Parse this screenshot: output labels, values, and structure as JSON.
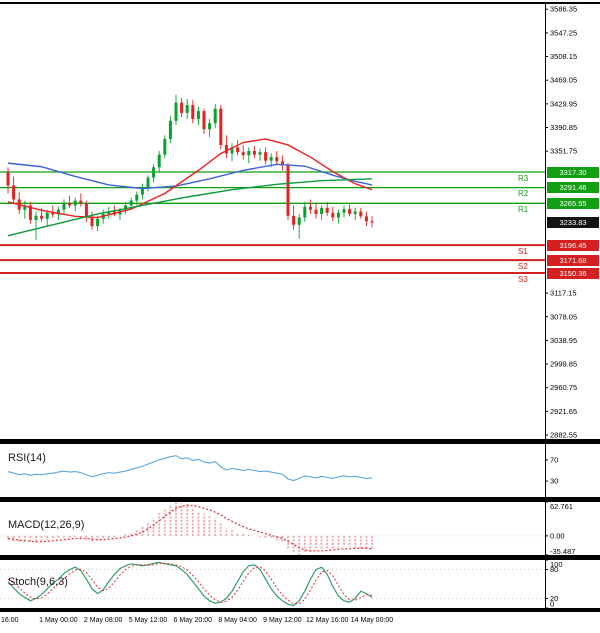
{
  "pivots": {
    "r3": {
      "label": "R3",
      "value": "3317.30"
    },
    "r2": {
      "label": "R2",
      "value": "3291.46"
    },
    "r1": {
      "label": "R1",
      "value": "3265.55"
    },
    "last": {
      "value": "3233.83"
    },
    "s1": {
      "label": "S1",
      "value": "3196.45"
    },
    "s2": {
      "label": "S2",
      "value": "3171.68"
    },
    "s3": {
      "label": "S3",
      "value": "3150.36"
    }
  },
  "panes": {
    "rsi": {
      "title": "RSI(14)"
    },
    "macd": {
      "title": "MACD(12,26,9)"
    },
    "stoch": {
      "title": "Stoch(9,6,3)"
    }
  },
  "colors": {
    "bull": "#0aa12e",
    "bear": "#e02424",
    "ma_blue": "#3a62d8",
    "ma_red": "#f02020",
    "ma_green": "#0a9a3c",
    "pivot_green": "#12a012",
    "pivot_red": "#d42020",
    "last_bg": "#141414",
    "rsi_line": "#5aa7e0",
    "macd_hist": "#f0a4a8",
    "macd_signal": "#e03030",
    "stoch_k": "#2f9e6e",
    "stoch_d": "#e03030",
    "axis_text": "#000000"
  },
  "chart_data": {
    "type": "candlestick",
    "timeframe_hint": "4H gold price chart with pivot levels, RSI, MACD, Stochastic",
    "price_axis": {
      "min": 2876,
      "max": 3595,
      "ticks": [
        3586.35,
        3547.25,
        3508.15,
        3469.05,
        3429.95,
        3390.85,
        3351.75,
        3117.15,
        3078.05,
        3038.95,
        2999.85,
        2960.75,
        2921.65,
        2882.55
      ]
    },
    "x_ticks": [
      {
        "i": 1,
        "label": "16:00"
      },
      {
        "i": 9,
        "label": "1 May 00:00"
      },
      {
        "i": 17,
        "label": "2 May 08:00"
      },
      {
        "i": 25,
        "label": "5 May 12:00"
      },
      {
        "i": 33,
        "label": "6 May 20:00"
      },
      {
        "i": 41,
        "label": "8 May 04:00"
      },
      {
        "i": 49,
        "label": "9 May 12:00"
      },
      {
        "i": 57,
        "label": "12 May 16:00"
      },
      {
        "i": 65,
        "label": "14 May 00:00"
      }
    ],
    "candles": [
      [
        3318,
        3325,
        3282,
        3295
      ],
      [
        3295,
        3310,
        3265,
        3272
      ],
      [
        3272,
        3285,
        3248,
        3255
      ],
      [
        3255,
        3270,
        3240,
        3262
      ],
      [
        3262,
        3268,
        3232,
        3238
      ],
      [
        3238,
        3252,
        3205,
        3245
      ],
      [
        3245,
        3258,
        3235,
        3240
      ],
      [
        3240,
        3255,
        3228,
        3250
      ],
      [
        3250,
        3262,
        3242,
        3247
      ],
      [
        3247,
        3260,
        3238,
        3255
      ],
      [
        3255,
        3272,
        3248,
        3266
      ],
      [
        3266,
        3278,
        3258,
        3262
      ],
      [
        3262,
        3275,
        3252,
        3270
      ],
      [
        3270,
        3282,
        3260,
        3265
      ],
      [
        3265,
        3270,
        3235,
        3242
      ],
      [
        3242,
        3252,
        3222,
        3228
      ],
      [
        3228,
        3245,
        3220,
        3240
      ],
      [
        3240,
        3255,
        3232,
        3248
      ],
      [
        3248,
        3260,
        3240,
        3252
      ],
      [
        3252,
        3262,
        3244,
        3247
      ],
      [
        3247,
        3258,
        3238,
        3255
      ],
      [
        3255,
        3268,
        3248,
        3262
      ],
      [
        3262,
        3275,
        3255,
        3270
      ],
      [
        3270,
        3285,
        3262,
        3280
      ],
      [
        3280,
        3298,
        3272,
        3292
      ],
      [
        3292,
        3312,
        3285,
        3308
      ],
      [
        3308,
        3330,
        3300,
        3325
      ],
      [
        3325,
        3352,
        3318,
        3346
      ],
      [
        3346,
        3378,
        3340,
        3372
      ],
      [
        3372,
        3410,
        3365,
        3402
      ],
      [
        3402,
        3445,
        3395,
        3432
      ],
      [
        3432,
        3440,
        3408,
        3415
      ],
      [
        3415,
        3438,
        3405,
        3428
      ],
      [
        3428,
        3436,
        3398,
        3405
      ],
      [
        3405,
        3425,
        3395,
        3418
      ],
      [
        3418,
        3422,
        3380,
        3388
      ],
      [
        3388,
        3405,
        3375,
        3398
      ],
      [
        3398,
        3430,
        3390,
        3422
      ],
      [
        3422,
        3428,
        3355,
        3362
      ],
      [
        3362,
        3378,
        3340,
        3348
      ],
      [
        3348,
        3365,
        3335,
        3358
      ],
      [
        3358,
        3370,
        3345,
        3350
      ],
      [
        3350,
        3362,
        3338,
        3345
      ],
      [
        3345,
        3358,
        3332,
        3352
      ],
      [
        3352,
        3360,
        3340,
        3346
      ],
      [
        3346,
        3356,
        3336,
        3350
      ],
      [
        3350,
        3358,
        3330,
        3336
      ],
      [
        3336,
        3348,
        3325,
        3342
      ],
      [
        3342,
        3352,
        3330,
        3335
      ],
      [
        3335,
        3345,
        3320,
        3328
      ],
      [
        3328,
        3332,
        3238,
        3245
      ],
      [
        3245,
        3262,
        3222,
        3230
      ],
      [
        3230,
        3248,
        3207,
        3242
      ],
      [
        3242,
        3268,
        3235,
        3260
      ],
      [
        3260,
        3272,
        3248,
        3255
      ],
      [
        3255,
        3265,
        3240,
        3248
      ],
      [
        3248,
        3262,
        3238,
        3258
      ],
      [
        3258,
        3268,
        3245,
        3250
      ],
      [
        3250,
        3260,
        3236,
        3242
      ],
      [
        3242,
        3255,
        3232,
        3250
      ],
      [
        3250,
        3262,
        3242,
        3256
      ],
      [
        3256,
        3264,
        3244,
        3248
      ],
      [
        3248,
        3258,
        3238,
        3252
      ],
      [
        3252,
        3258,
        3240,
        3244
      ],
      [
        3244,
        3252,
        3228,
        3236
      ],
      [
        3236,
        3244,
        3226,
        3233.83
      ]
    ],
    "overlays": {
      "ma_blue": [
        [
          0,
          3332
        ],
        [
          6,
          3326
        ],
        [
          12,
          3310
        ],
        [
          18,
          3296
        ],
        [
          24,
          3290
        ],
        [
          30,
          3294
        ],
        [
          36,
          3306
        ],
        [
          42,
          3320
        ],
        [
          48,
          3330
        ],
        [
          53,
          3327
        ],
        [
          58,
          3312
        ],
        [
          62,
          3302
        ],
        [
          65,
          3296
        ]
      ],
      "ma_red": [
        [
          0,
          3268
        ],
        [
          6,
          3254
        ],
        [
          12,
          3244
        ],
        [
          16,
          3242
        ],
        [
          22,
          3256
        ],
        [
          28,
          3282
        ],
        [
          34,
          3320
        ],
        [
          38,
          3348
        ],
        [
          42,
          3366
        ],
        [
          46,
          3372
        ],
        [
          50,
          3362
        ],
        [
          54,
          3342
        ],
        [
          58,
          3318
        ],
        [
          62,
          3298
        ],
        [
          65,
          3288
        ]
      ],
      "ma_green": [
        [
          0,
          3212
        ],
        [
          8,
          3230
        ],
        [
          16,
          3248
        ],
        [
          24,
          3262
        ],
        [
          32,
          3276
        ],
        [
          40,
          3288
        ],
        [
          48,
          3297
        ],
        [
          56,
          3303
        ],
        [
          65,
          3306
        ]
      ]
    },
    "levels": {
      "resistance": [
        {
          "label": "R3",
          "value": 3317.3
        },
        {
          "label": "R2",
          "value": 3291.46
        },
        {
          "label": "R1",
          "value": 3265.55
        }
      ],
      "support": [
        {
          "label": "S1",
          "value": 3196.45
        },
        {
          "label": "S2",
          "value": 3171.68
        },
        {
          "label": "S3",
          "value": 3150.36
        }
      ],
      "last_price": 3233.83
    },
    "rsi": {
      "range": [
        0,
        100
      ],
      "ticks": [
        70,
        30
      ],
      "values": [
        48,
        45,
        42,
        44,
        41,
        43,
        42,
        44,
        45,
        47,
        49,
        47,
        48,
        46,
        42,
        38,
        41,
        44,
        46,
        45,
        47,
        49,
        52,
        55,
        58,
        62,
        66,
        70,
        73,
        76,
        78,
        72,
        74,
        69,
        71,
        66,
        64,
        67,
        57,
        51,
        54,
        52,
        50,
        52,
        50,
        48,
        49,
        47,
        45,
        43,
        34,
        31,
        35,
        40,
        38,
        36,
        39,
        37,
        35,
        38,
        40,
        38,
        39,
        37,
        35,
        36
      ]
    },
    "macd": {
      "range": [
        -35.487,
        62.761
      ],
      "ticks": [
        "62.761",
        "0.00",
        "-35.487"
      ],
      "hist": [
        -8,
        -10,
        -12,
        -11,
        -13,
        -12,
        -10,
        -8,
        -6,
        -4,
        -3,
        -3,
        -2,
        -4,
        -8,
        -11,
        -9,
        -6,
        -4,
        -2,
        0,
        3,
        7,
        11,
        17,
        25,
        33,
        42,
        51,
        58,
        62.761,
        60,
        55,
        49,
        45,
        41,
        37,
        33,
        23,
        14,
        10,
        7,
        4,
        2,
        0,
        -2,
        -4,
        -6,
        -9,
        -13,
        -24,
        -31,
        -35.487,
        -33,
        -30,
        -27,
        -25,
        -24,
        -23,
        -22,
        -21,
        -21,
        -22,
        -23,
        -24,
        -25
      ],
      "signal": [
        -5,
        -6,
        -8,
        -9,
        -10,
        -11,
        -11,
        -10,
        -9,
        -8,
        -7,
        -6,
        -5,
        -5,
        -5,
        -6,
        -7,
        -7,
        -6,
        -5,
        -4,
        -2,
        0,
        3,
        7,
        13,
        20,
        28,
        36,
        44,
        51,
        55,
        57,
        56,
        54,
        51,
        48,
        44,
        39,
        32,
        27,
        22,
        17,
        13,
        10,
        7,
        4,
        1,
        -2,
        -5,
        -10,
        -16,
        -22,
        -26,
        -28,
        -28,
        -28,
        -27,
        -26,
        -25,
        -24,
        -24,
        -23,
        -23,
        -23,
        -24
      ]
    },
    "stoch": {
      "range": [
        0,
        100
      ],
      "ticks": [
        100,
        80,
        20,
        0
      ],
      "levels": [
        80,
        20
      ],
      "k": [
        55,
        42,
        30,
        22,
        15,
        20,
        28,
        40,
        52,
        60,
        72,
        80,
        85,
        78,
        60,
        40,
        30,
        38,
        55,
        70,
        82,
        88,
        92,
        90,
        88,
        90,
        93,
        95,
        92,
        90,
        88,
        80,
        70,
        55,
        40,
        25,
        15,
        10,
        12,
        20,
        35,
        55,
        75,
        88,
        90,
        80,
        60,
        40,
        25,
        15,
        8,
        5,
        15,
        35,
        60,
        80,
        85,
        70,
        45,
        25,
        15,
        12,
        20,
        35,
        30,
        22
      ],
      "d": [
        60,
        52,
        42,
        31,
        22,
        19,
        21,
        29,
        40,
        51,
        61,
        71,
        79,
        81,
        74,
        59,
        43,
        36,
        41,
        54,
        69,
        80,
        87,
        90,
        90,
        89,
        90,
        93,
        93,
        92,
        90,
        86,
        79,
        68,
        55,
        40,
        27,
        17,
        12,
        14,
        22,
        37,
        55,
        73,
        84,
        86,
        77,
        60,
        42,
        27,
        16,
        9,
        9,
        18,
        37,
        58,
        75,
        78,
        67,
        47,
        28,
        17,
        16,
        22,
        28,
        26
      ]
    }
  }
}
